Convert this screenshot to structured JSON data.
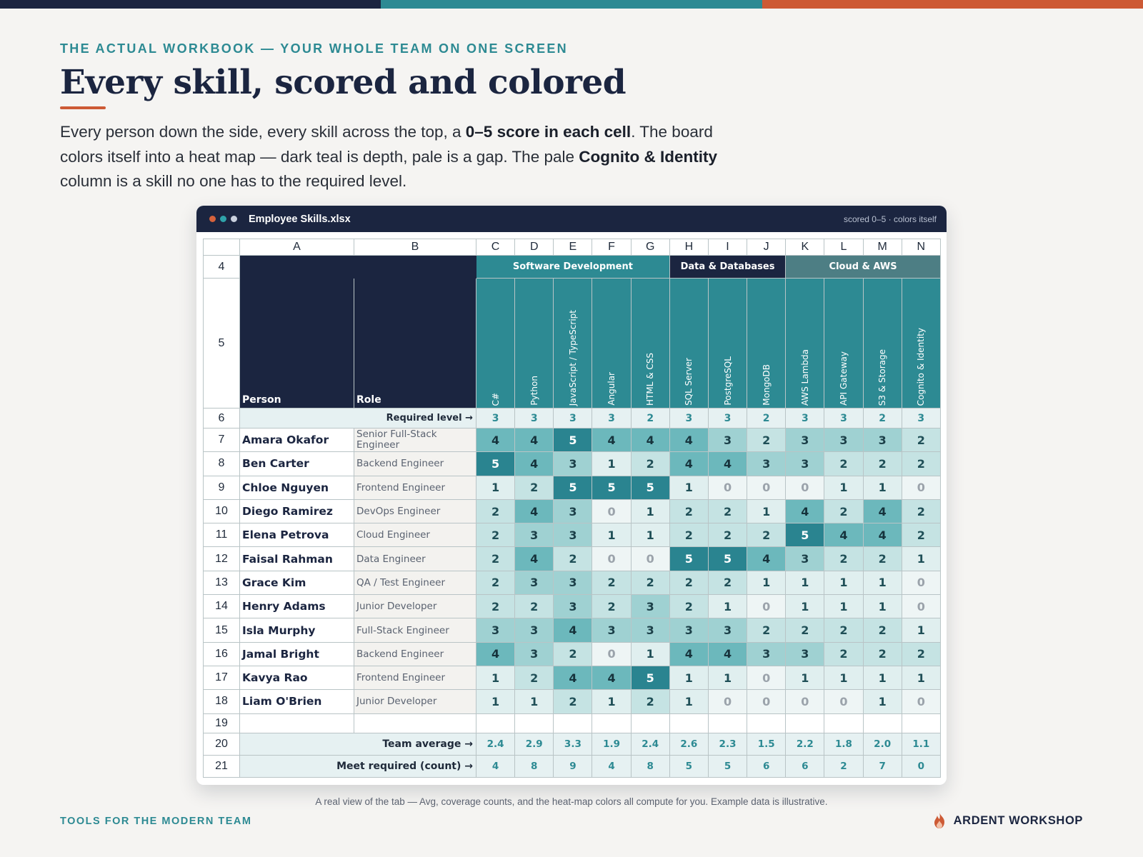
{
  "eyebrow": "THE ACTUAL WORKBOOK — YOUR WHOLE TEAM ON ONE SCREEN",
  "title": "Every skill, scored and colored",
  "intro": {
    "p1": "Every person down the side, every skill across the top, a ",
    "b1": "0–5 score in each cell",
    "p2": ". The board colors itself into a heat map — dark teal is depth, pale is a gap. The pale ",
    "b2": "Cognito & Identity",
    "p3": " column is a skill no one has to the required level."
  },
  "window": {
    "title": "Employee Skills.xlsx",
    "tag": "scored 0–5 · colors itself",
    "dots": [
      "#d6623c",
      "#2fa3aa",
      "#c9d0dd"
    ]
  },
  "sheet": {
    "col_letters": [
      "A",
      "B",
      "C",
      "D",
      "E",
      "F",
      "G",
      "H",
      "I",
      "J",
      "K",
      "L",
      "M",
      "N"
    ],
    "row_numbers": {
      "groups": "4",
      "skills": "5",
      "required": "6",
      "blank": "19",
      "average": "20",
      "meet": "21"
    },
    "groups": [
      {
        "name": "Software Development",
        "span": 5,
        "style": "grp-sd"
      },
      {
        "name": "Data & Databases",
        "span": 3,
        "style": "grp-dd"
      },
      {
        "name": "Cloud & AWS",
        "span": 4,
        "style": "grp-ca"
      }
    ],
    "person_label": "Person",
    "role_label": "Role",
    "skills": [
      "C#",
      "Python",
      "JavaScript / TypeScript",
      "Angular",
      "HTML & CSS",
      "SQL Server",
      "PostgreSQL",
      "MongoDB",
      "AWS Lambda",
      "API Gateway",
      "S3 & Storage",
      "Cognito & Identity"
    ],
    "required_label": "Required level →",
    "required": [
      3,
      3,
      3,
      3,
      2,
      3,
      3,
      2,
      3,
      3,
      2,
      3
    ],
    "people": [
      {
        "row": "7",
        "name": "Amara Okafor",
        "role": "Senior Full-Stack Engineer",
        "scores": [
          4,
          4,
          5,
          4,
          4,
          4,
          3,
          2,
          3,
          3,
          3,
          2
        ]
      },
      {
        "row": "8",
        "name": "Ben Carter",
        "role": "Backend Engineer",
        "scores": [
          5,
          4,
          3,
          1,
          2,
          4,
          4,
          3,
          3,
          2,
          2,
          2
        ]
      },
      {
        "row": "9",
        "name": "Chloe Nguyen",
        "role": "Frontend Engineer",
        "scores": [
          1,
          2,
          5,
          5,
          5,
          1,
          0,
          0,
          0,
          1,
          1,
          0
        ]
      },
      {
        "row": "10",
        "name": "Diego Ramirez",
        "role": "DevOps Engineer",
        "scores": [
          2,
          4,
          3,
          0,
          1,
          2,
          2,
          1,
          4,
          2,
          4,
          2
        ]
      },
      {
        "row": "11",
        "name": "Elena Petrova",
        "role": "Cloud Engineer",
        "scores": [
          2,
          3,
          3,
          1,
          1,
          2,
          2,
          2,
          5,
          4,
          4,
          2
        ]
      },
      {
        "row": "12",
        "name": "Faisal Rahman",
        "role": "Data Engineer",
        "scores": [
          2,
          4,
          2,
          0,
          0,
          5,
          5,
          4,
          3,
          2,
          2,
          1
        ]
      },
      {
        "row": "13",
        "name": "Grace Kim",
        "role": "QA / Test Engineer",
        "scores": [
          2,
          3,
          3,
          2,
          2,
          2,
          2,
          1,
          1,
          1,
          1,
          0
        ]
      },
      {
        "row": "14",
        "name": "Henry Adams",
        "role": "Junior Developer",
        "scores": [
          2,
          2,
          3,
          2,
          3,
          2,
          1,
          0,
          1,
          1,
          1,
          0
        ]
      },
      {
        "row": "15",
        "name": "Isla Murphy",
        "role": "Full-Stack Engineer",
        "scores": [
          3,
          3,
          4,
          3,
          3,
          3,
          3,
          2,
          2,
          2,
          2,
          1
        ]
      },
      {
        "row": "16",
        "name": "Jamal Bright",
        "role": "Backend Engineer",
        "scores": [
          4,
          3,
          2,
          0,
          1,
          4,
          4,
          3,
          3,
          2,
          2,
          2
        ]
      },
      {
        "row": "17",
        "name": "Kavya Rao",
        "role": "Frontend Engineer",
        "scores": [
          1,
          2,
          4,
          4,
          5,
          1,
          1,
          0,
          1,
          1,
          1,
          1
        ]
      },
      {
        "row": "18",
        "name": "Liam O'Brien",
        "role": "Junior Developer",
        "scores": [
          1,
          1,
          2,
          1,
          2,
          1,
          0,
          0,
          0,
          0,
          1,
          0
        ]
      }
    ],
    "average_label": "Team average →",
    "averages": [
      "2.4",
      "2.9",
      "3.3",
      "1.9",
      "2.4",
      "2.6",
      "2.3",
      "1.5",
      "2.2",
      "1.8",
      "2.0",
      "1.1"
    ],
    "meet_label": "Meet required (count) →",
    "meet": [
      "4",
      "8",
      "9",
      "4",
      "8",
      "5",
      "5",
      "6",
      "6",
      "2",
      "7",
      "0"
    ]
  },
  "heat_colors": {
    "0": {
      "bg": "#eef5f5",
      "fg": "#9ba3ab"
    },
    "1": {
      "bg": "#e0efef",
      "fg": "#1f4f57"
    },
    "2": {
      "bg": "#c5e3e3",
      "fg": "#1f4f57"
    },
    "3": {
      "bg": "#9fd1d2",
      "fg": "#1b3f48"
    },
    "4": {
      "bg": "#6cb8bc",
      "fg": "#16333c"
    },
    "5": {
      "bg": "#2a8490",
      "fg": "#ffffff"
    }
  },
  "caption": "A real view of the tab — Avg, coverage counts, and the heat-map colors all compute for you. Example data is illustrative.",
  "footer": {
    "left": "TOOLS FOR THE MODERN TEAM",
    "brand": "ARDENT WORKSHOP"
  },
  "colors": {
    "navy": "#1b2540",
    "teal": "#2d8a93",
    "orange": "#cd5a35"
  }
}
